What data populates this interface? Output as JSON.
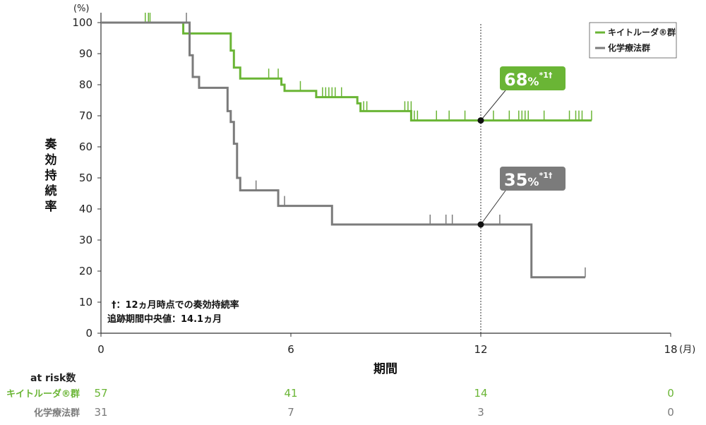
{
  "colors": {
    "pembro": "#6ab535",
    "chemo": "#7b7b7b",
    "axis": "#333333"
  },
  "chart_data": {
    "type": "line",
    "subtype": "kaplan-meier",
    "ylabel": "奏効持続率",
    "y_unit": "(%)",
    "xlabel": "期間",
    "x_unit": "(月)",
    "xlim": [
      0,
      18
    ],
    "ylim": [
      0,
      100
    ],
    "x_ticks": [
      0,
      6,
      12,
      18
    ],
    "y_ticks": [
      0,
      10,
      20,
      30,
      40,
      50,
      60,
      70,
      80,
      90,
      100
    ],
    "reference_line_x": 12,
    "legend_position": "top-right",
    "series": [
      {
        "name": "キイトルーダ®群",
        "color": "#6ab535",
        "steps": [
          [
            0,
            100
          ],
          [
            2.6,
            96.5
          ],
          [
            4.1,
            91
          ],
          [
            4.2,
            85.5
          ],
          [
            4.4,
            82
          ],
          [
            5.7,
            80
          ],
          [
            5.8,
            78
          ],
          [
            6.8,
            76
          ],
          [
            8.1,
            74
          ],
          [
            8.2,
            71.5
          ],
          [
            9.8,
            68.5
          ],
          [
            15.5,
            68.5
          ]
        ],
        "censored": [
          [
            1.4,
            100
          ],
          [
            1.5,
            100
          ],
          [
            1.55,
            100
          ],
          [
            5.3,
            82
          ],
          [
            5.6,
            82
          ],
          [
            6.3,
            78
          ],
          [
            7.0,
            76
          ],
          [
            7.1,
            76
          ],
          [
            7.2,
            76
          ],
          [
            7.3,
            76
          ],
          [
            7.4,
            76
          ],
          [
            7.6,
            76
          ],
          [
            8.3,
            71.5
          ],
          [
            8.4,
            71.5
          ],
          [
            9.6,
            71.5
          ],
          [
            9.7,
            71.5
          ],
          [
            9.8,
            71.5
          ],
          [
            9.9,
            68.5
          ],
          [
            10.0,
            68.5
          ],
          [
            10.6,
            68.5
          ],
          [
            11.0,
            68.5
          ],
          [
            11.5,
            68.5
          ],
          [
            12.4,
            68.5
          ],
          [
            12.9,
            68.5
          ],
          [
            13.2,
            68.5
          ],
          [
            13.3,
            68.5
          ],
          [
            13.4,
            68.5
          ],
          [
            13.5,
            68.5
          ],
          [
            14.0,
            68.5
          ],
          [
            14.8,
            68.5
          ],
          [
            15.0,
            68.5
          ],
          [
            15.1,
            68.5
          ],
          [
            15.2,
            68.5
          ],
          [
            15.5,
            68.5
          ]
        ]
      },
      {
        "name": "化学療法群",
        "color": "#7b7b7b",
        "steps": [
          [
            0,
            100
          ],
          [
            2.8,
            89.5
          ],
          [
            2.9,
            82.5
          ],
          [
            3.1,
            79
          ],
          [
            4.0,
            71.5
          ],
          [
            4.1,
            68
          ],
          [
            4.2,
            61
          ],
          [
            4.3,
            50
          ],
          [
            4.4,
            46
          ],
          [
            5.6,
            41
          ],
          [
            7.3,
            35
          ],
          [
            13.6,
            18
          ],
          [
            15.3,
            18
          ]
        ],
        "censored": [
          [
            2.7,
            100
          ],
          [
            4.9,
            46
          ],
          [
            5.8,
            41
          ],
          [
            10.4,
            35
          ],
          [
            10.9,
            35
          ],
          [
            11.1,
            35
          ],
          [
            12.6,
            35
          ],
          [
            15.3,
            18
          ]
        ]
      }
    ],
    "callouts": [
      {
        "value": "68",
        "suffix": "%",
        "mark": "*1†",
        "at_x": 12,
        "at_y": 68.5,
        "series": 0
      },
      {
        "value": "35",
        "suffix": "%",
        "mark": "*1†",
        "at_x": 12,
        "at_y": 35,
        "series": 1
      }
    ],
    "notes": [
      "†：12ヵ月時点での奏効持続率",
      "追跡期間中央値：14.1ヵ月"
    ],
    "at_risk": {
      "title": "at risk数",
      "times": [
        0,
        6,
        12,
        18
      ],
      "rows": [
        {
          "label": "キイトルーダ®群",
          "values": [
            57,
            41,
            14,
            0
          ]
        },
        {
          "label": "化学療法群",
          "values": [
            31,
            7,
            3,
            0
          ]
        }
      ]
    }
  }
}
